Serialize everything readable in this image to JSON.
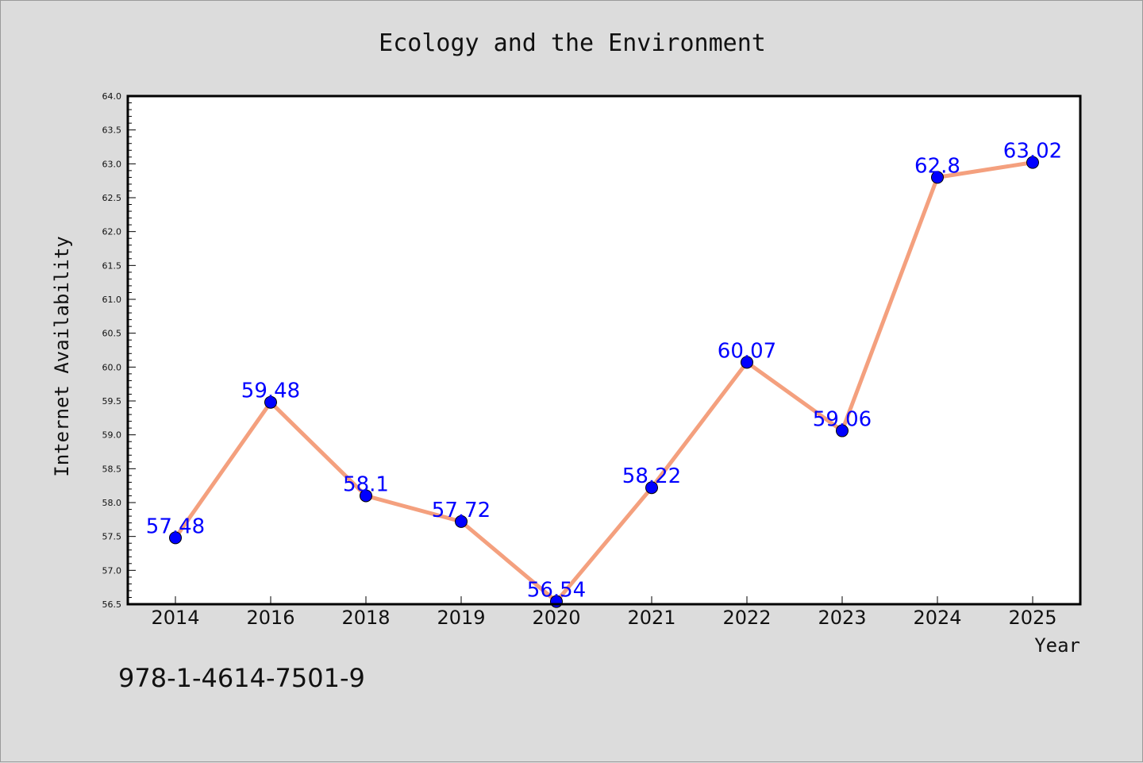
{
  "chart_data": {
    "type": "line",
    "title": "Ecology and the Environment",
    "xlabel": "Year",
    "ylabel": "Internet Availability",
    "categories": [
      "2014",
      "2016",
      "2018",
      "2019",
      "2020",
      "2021",
      "2022",
      "2023",
      "2024",
      "2025"
    ],
    "values": [
      57.48,
      59.48,
      58.1,
      57.72,
      56.54,
      58.22,
      60.07,
      59.06,
      62.8,
      63.02
    ],
    "data_labels": [
      "57.48",
      "59.48",
      "58.1",
      "57.72",
      "56.54",
      "58.22",
      "60.07",
      "59.06",
      "62.8",
      "63.02"
    ],
    "ylim": [
      56.5,
      64.0
    ],
    "yticks": [
      "56.5",
      "57.0",
      "57.5",
      "58.0",
      "58.5",
      "59.0",
      "59.5",
      "60.0",
      "60.5",
      "61.0",
      "61.5",
      "62.0",
      "62.5",
      "63.0",
      "63.5",
      "64.0"
    ],
    "grid": false,
    "legend": "none",
    "line_color": "#f4a07e",
    "marker_color": "#0000ff",
    "label_color": "#0000ff",
    "background_color": "#dcdcdc",
    "plot_background_color": "#ffffff"
  },
  "footer_code": "978-1-4614-7501-9"
}
